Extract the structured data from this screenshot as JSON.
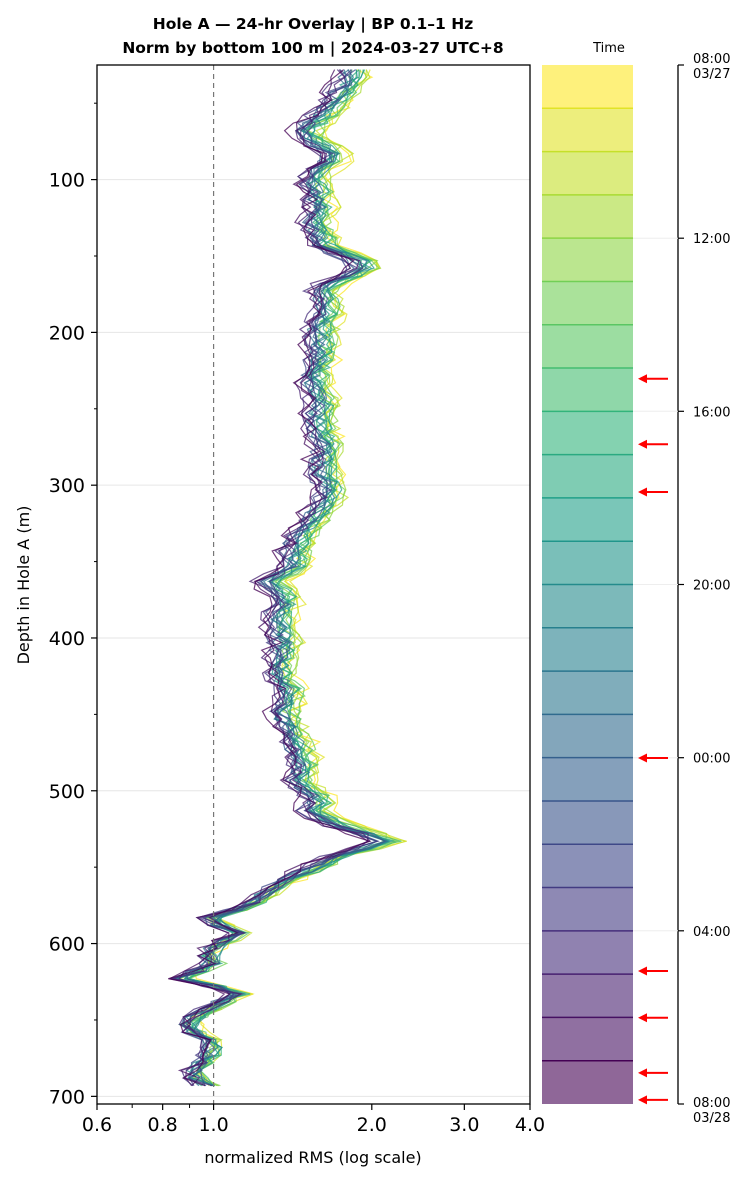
{
  "chart_data": {
    "type": "line",
    "title_line1": "Hole A — 24-hr Overlay  |  BP 0.1–1 Hz",
    "title_line2": "Norm by bottom 100 m  |  2024-03-27 UTC+8",
    "xlabel": "normalized RMS  (log scale)",
    "ylabel": "Depth in Hole A (m)",
    "x_scale": "log",
    "xlim": [
      0.6,
      4.0
    ],
    "ylim": [
      705,
      25
    ],
    "x_ticks": [
      {
        "value": 0.6,
        "label": "0.6"
      },
      {
        "value": 0.8,
        "label": "0.8"
      },
      {
        "value": 1.0,
        "label": "1.0"
      },
      {
        "value": 2.0,
        "label": "2.0"
      },
      {
        "value": 3.0,
        "label": "3.0"
      },
      {
        "value": 4.0,
        "label": "4.0"
      }
    ],
    "y_ticks": [
      {
        "value": 100,
        "label": "100"
      },
      {
        "value": 200,
        "label": "200"
      },
      {
        "value": 300,
        "label": "300"
      },
      {
        "value": 400,
        "label": "400"
      },
      {
        "value": 500,
        "label": "500"
      },
      {
        "value": 600,
        "label": "600"
      },
      {
        "value": 700,
        "label": "700"
      }
    ],
    "reference_line_x": 1.0,
    "grid": "horizontal",
    "series_count": 24,
    "median_profile": {
      "depth": [
        28,
        40,
        55,
        68,
        75,
        85,
        100,
        115,
        130,
        145,
        155,
        160,
        170,
        185,
        200,
        215,
        230,
        245,
        260,
        275,
        290,
        305,
        320,
        335,
        345,
        355,
        362,
        375,
        390,
        405,
        420,
        435,
        450,
        465,
        480,
        495,
        505,
        515,
        525,
        532,
        545,
        560,
        575,
        585,
        592,
        605,
        615,
        622,
        632,
        645,
        655,
        665,
        675,
        685,
        695
      ],
      "rms": [
        1.75,
        1.68,
        1.55,
        1.42,
        1.48,
        1.62,
        1.45,
        1.52,
        1.48,
        1.55,
        1.85,
        1.8,
        1.52,
        1.55,
        1.5,
        1.52,
        1.46,
        1.52,
        1.5,
        1.55,
        1.52,
        1.58,
        1.48,
        1.38,
        1.34,
        1.35,
        1.2,
        1.3,
        1.25,
        1.3,
        1.25,
        1.32,
        1.28,
        1.35,
        1.4,
        1.38,
        1.5,
        1.45,
        1.72,
        2.05,
        1.55,
        1.3,
        1.15,
        0.92,
        1.1,
        0.95,
        0.98,
        0.82,
        1.1,
        0.92,
        0.86,
        0.98,
        0.95,
        0.88,
        0.96
      ]
    },
    "colorbar": {
      "label": "Time",
      "ticks": [
        {
          "pos": 0.0,
          "label": "08:00",
          "sublabel": "03/27"
        },
        {
          "pos": 0.1667,
          "label": "12:00",
          "sublabel": ""
        },
        {
          "pos": 0.3333,
          "label": "16:00",
          "sublabel": ""
        },
        {
          "pos": 0.5,
          "label": "20:00",
          "sublabel": ""
        },
        {
          "pos": 0.6667,
          "label": "00:00",
          "sublabel": ""
        },
        {
          "pos": 0.8333,
          "label": "04:00",
          "sublabel": ""
        },
        {
          "pos": 1.0,
          "label": "08:00",
          "sublabel": "03/28"
        }
      ],
      "segments": 24,
      "color_stops": [
        "#fde725",
        "#b5de2b",
        "#6ece58",
        "#35b779",
        "#1f9e89",
        "#26828e",
        "#31688e",
        "#3e4989",
        "#482878",
        "#440154"
      ],
      "arrow_color": "#ff0000",
      "arrow_positions": [
        0.302,
        0.365,
        0.411,
        0.667,
        0.872,
        0.917,
        0.97,
        0.996
      ]
    }
  }
}
